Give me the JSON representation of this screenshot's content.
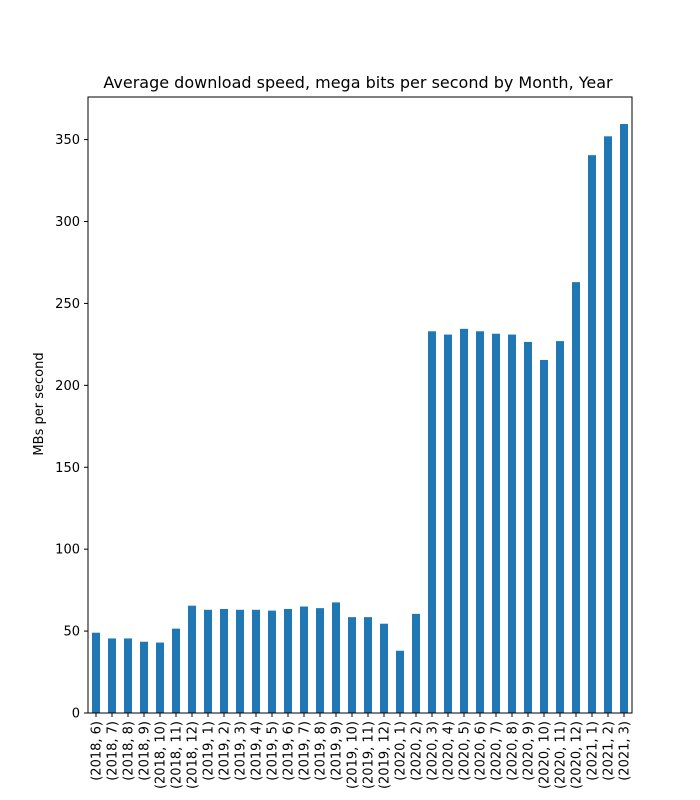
{
  "chart_data": {
    "type": "bar",
    "title": "Average download speed, mega bits per second by Month, Year",
    "xlabel": "",
    "ylabel": "MBs per second",
    "ylim": [
      0,
      376
    ],
    "yticks": [
      0,
      50,
      100,
      150,
      200,
      250,
      300,
      350
    ],
    "grid": false,
    "bar_color": "#1f77b4",
    "categories": [
      "(2018, 6)",
      "(2018, 7)",
      "(2018, 8)",
      "(2018, 9)",
      "(2018, 10)",
      "(2018, 11)",
      "(2018, 12)",
      "(2019, 1)",
      "(2019, 2)",
      "(2019, 3)",
      "(2019, 4)",
      "(2019, 5)",
      "(2019, 6)",
      "(2019, 7)",
      "(2019, 8)",
      "(2019, 9)",
      "(2019, 10)",
      "(2019, 11)",
      "(2019, 12)",
      "(2020, 1)",
      "(2020, 2)",
      "(2020, 3)",
      "(2020, 4)",
      "(2020, 5)",
      "(2020, 6)",
      "(2020, 7)",
      "(2020, 8)",
      "(2020, 9)",
      "(2020, 10)",
      "(2020, 11)",
      "(2020, 12)",
      "(2021, 1)",
      "(2021, 2)",
      "(2021, 3)"
    ],
    "values": [
      49,
      45.5,
      45.5,
      43.5,
      43,
      51.5,
      65.5,
      63,
      63.5,
      63,
      63,
      62.5,
      63.5,
      65,
      64,
      67.5,
      58.5,
      58.5,
      54.5,
      38,
      60.5,
      233,
      231,
      234.5,
      233,
      231.5,
      231,
      226.5,
      215.5,
      227,
      263,
      340.5,
      352,
      359.5
    ]
  }
}
